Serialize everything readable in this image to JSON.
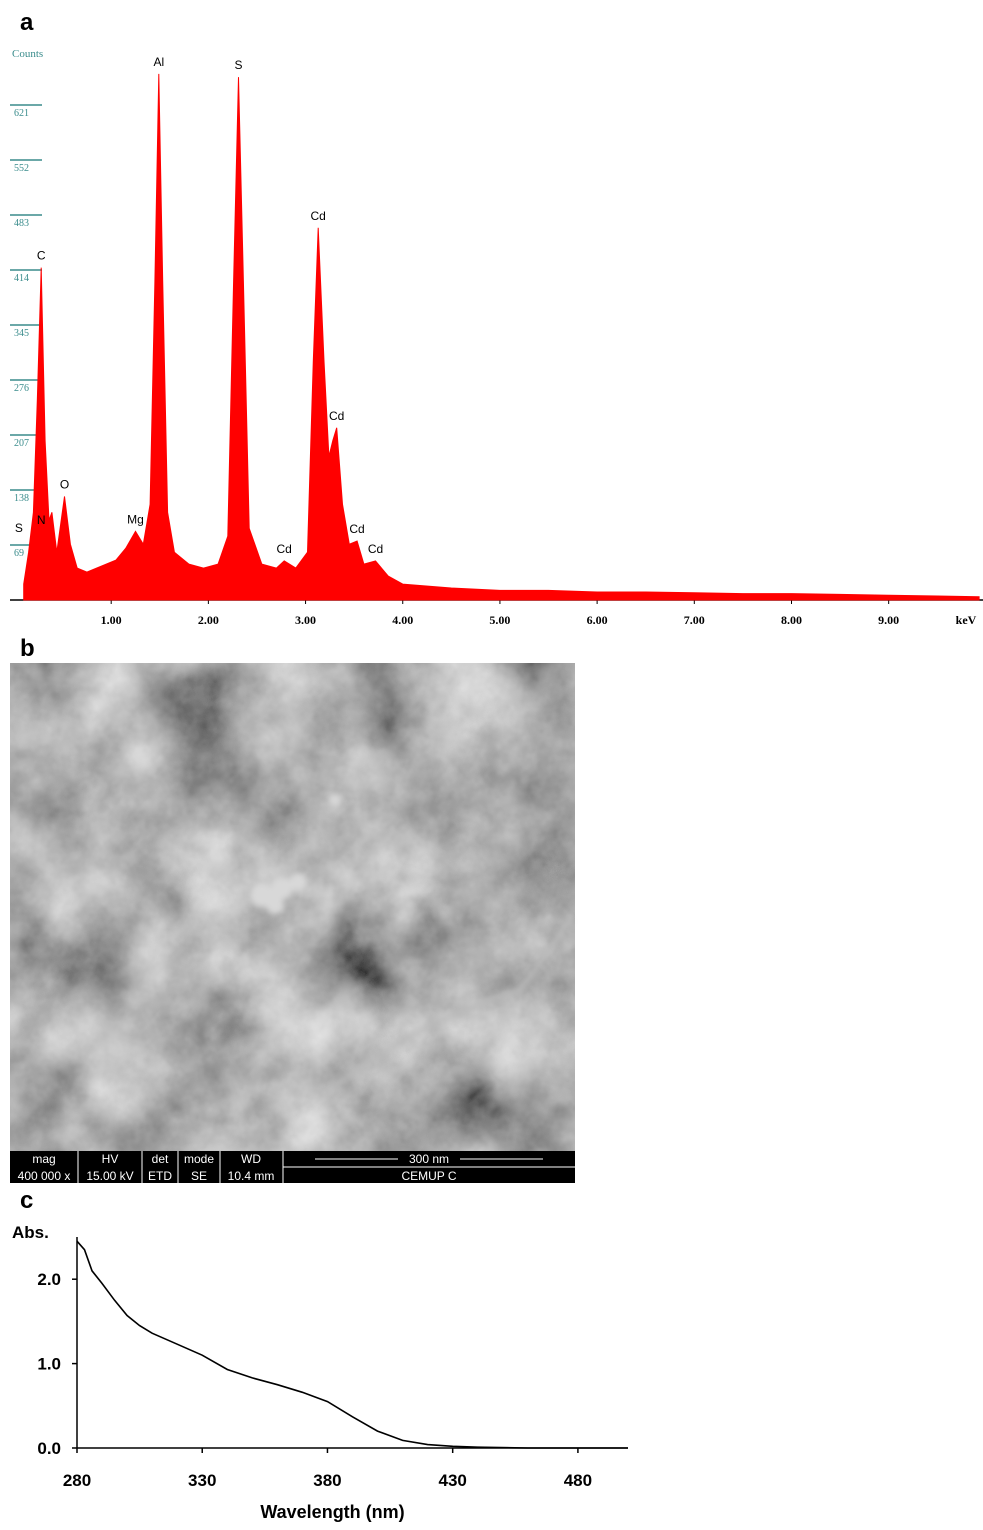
{
  "panel_labels": [
    "a",
    "b",
    "c"
  ],
  "chart_data": [
    {
      "type": "area",
      "ylabel": "Counts",
      "xlabel": "keV",
      "color": "#ff0000",
      "x": [
        0.1,
        0.15,
        0.2,
        0.24,
        0.28,
        0.32,
        0.36,
        0.39,
        0.44,
        0.52,
        0.58,
        0.65,
        0.75,
        0.85,
        0.95,
        1.05,
        1.15,
        1.25,
        1.33,
        1.4,
        1.45,
        1.49,
        1.53,
        1.58,
        1.65,
        1.8,
        1.95,
        2.1,
        2.2,
        2.26,
        2.31,
        2.36,
        2.42,
        2.55,
        2.7,
        2.78,
        2.9,
        3.02,
        3.08,
        3.13,
        3.19,
        3.24,
        3.28,
        3.32,
        3.38,
        3.45,
        3.53,
        3.6,
        3.72,
        3.85,
        4.0,
        4.5,
        5.0,
        5.5,
        6.0,
        6.5,
        7.0,
        7.5,
        8.0,
        8.5,
        9.0,
        9.5,
        9.93
      ],
      "values": [
        20,
        60,
        110,
        250,
        417,
        200,
        100,
        110,
        60,
        130,
        70,
        40,
        35,
        40,
        45,
        50,
        65,
        86,
        70,
        120,
        400,
        660,
        400,
        110,
        60,
        45,
        40,
        45,
        80,
        400,
        656,
        400,
        90,
        45,
        40,
        49,
        40,
        60,
        300,
        467,
        300,
        180,
        200,
        216,
        120,
        70,
        74,
        45,
        49,
        30,
        20,
        15,
        12,
        12,
        10,
        10,
        9,
        8,
        8,
        7,
        6,
        5,
        4
      ],
      "xlim": [
        0,
        9.95
      ],
      "ylim": [
        0,
        690
      ],
      "xticks": [
        {
          "value": 1,
          "label": "1.00"
        },
        {
          "value": 2,
          "label": "2.00"
        },
        {
          "value": 3,
          "label": "3.00"
        },
        {
          "value": 4,
          "label": "4.00"
        },
        {
          "value": 5,
          "label": "5.00"
        },
        {
          "value": 6,
          "label": "6.00"
        },
        {
          "value": 7,
          "label": "7.00"
        },
        {
          "value": 8,
          "label": "8.00"
        },
        {
          "value": 9,
          "label": "9.00"
        }
      ],
      "yticks": [
        69,
        138,
        207,
        276,
        345,
        414,
        483,
        552,
        621
      ],
      "annotations": [
        {
          "text": "S",
          "x": 0.05,
          "y": 75
        },
        {
          "text": "C",
          "x": 0.28,
          "y": 417
        },
        {
          "text": "N",
          "x": 0.28,
          "y": 85
        },
        {
          "text": "O",
          "x": 0.52,
          "y": 130
        },
        {
          "text": "Mg",
          "x": 1.25,
          "y": 86
        },
        {
          "text": "Al",
          "x": 1.49,
          "y": 660
        },
        {
          "text": "S",
          "x": 2.31,
          "y": 656
        },
        {
          "text": "Cd",
          "x": 2.78,
          "y": 49
        },
        {
          "text": "Cd",
          "x": 3.13,
          "y": 467
        },
        {
          "text": "Cd",
          "x": 3.32,
          "y": 216
        },
        {
          "text": "Cd",
          "x": 3.53,
          "y": 74
        },
        {
          "text": "Cd",
          "x": 3.72,
          "y": 49
        }
      ]
    },
    {
      "type": "line",
      "ylabel": "Abs.",
      "xlabel": "Wavelength (nm)",
      "color": "#000000",
      "x": [
        280,
        283,
        286,
        290,
        295,
        300,
        305,
        310,
        320,
        330,
        340,
        350,
        360,
        370,
        380,
        390,
        400,
        410,
        420,
        430,
        440,
        460,
        480,
        500
      ],
      "values": [
        2.45,
        2.35,
        2.1,
        1.95,
        1.75,
        1.57,
        1.45,
        1.36,
        1.23,
        1.1,
        0.93,
        0.83,
        0.75,
        0.66,
        0.55,
        0.37,
        0.2,
        0.09,
        0.04,
        0.02,
        0.01,
        0,
        0,
        0
      ],
      "xlim": [
        280,
        500
      ],
      "ylim": [
        0,
        2.5
      ],
      "xticks": [
        280,
        330,
        380,
        430,
        480
      ],
      "yticks": [
        {
          "value": 0,
          "label": "0.0"
        },
        {
          "value": 1,
          "label": "1.0"
        },
        {
          "value": 2,
          "label": "2.0"
        }
      ]
    }
  ],
  "sem_image": {
    "headers": [
      "mag",
      "HV",
      "det",
      "mode",
      "WD"
    ],
    "values": [
      "400 000 x",
      "15.00 kV",
      "ETD",
      "SE",
      "10.4 mm"
    ],
    "scale_bar": "300 nm",
    "label": "CEMUP C"
  }
}
